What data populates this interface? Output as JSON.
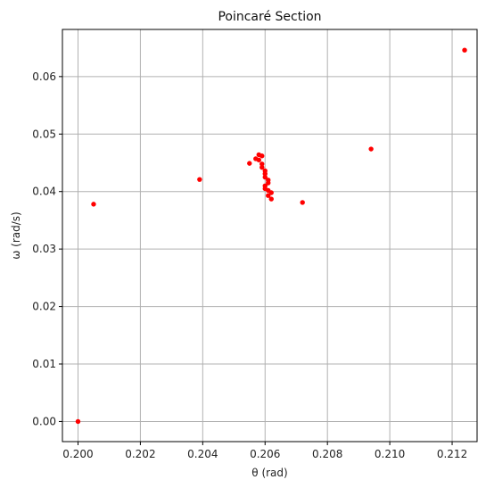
{
  "chart_data": {
    "type": "scatter",
    "title": "Poincaré Section",
    "xlabel": "θ (rad)",
    "ylabel": "ω (rad/s)",
    "xlim": [
      0.1995,
      0.2128
    ],
    "ylim": [
      -0.0035,
      0.0682
    ],
    "xticks": [
      0.2,
      0.202,
      0.204,
      0.206,
      0.208,
      0.21,
      0.212
    ],
    "xtick_labels": [
      "0.200",
      "0.202",
      "0.204",
      "0.206",
      "0.208",
      "0.210",
      "0.212"
    ],
    "yticks": [
      0.0,
      0.01,
      0.02,
      0.03,
      0.04,
      0.05,
      0.06
    ],
    "ytick_labels": [
      "0.00",
      "0.01",
      "0.02",
      "0.03",
      "0.04",
      "0.05",
      "0.06"
    ],
    "grid": true,
    "marker_color": "#ff0000",
    "points": [
      {
        "x": 0.2,
        "y": 0.0
      },
      {
        "x": 0.2005,
        "y": 0.0378
      },
      {
        "x": 0.2039,
        "y": 0.0421
      },
      {
        "x": 0.2055,
        "y": 0.0449
      },
      {
        "x": 0.2057,
        "y": 0.0457
      },
      {
        "x": 0.2058,
        "y": 0.0464
      },
      {
        "x": 0.2059,
        "y": 0.0462
      },
      {
        "x": 0.2058,
        "y": 0.0455
      },
      {
        "x": 0.2059,
        "y": 0.0448
      },
      {
        "x": 0.2059,
        "y": 0.0442
      },
      {
        "x": 0.206,
        "y": 0.0436
      },
      {
        "x": 0.206,
        "y": 0.0431
      },
      {
        "x": 0.206,
        "y": 0.0425
      },
      {
        "x": 0.2061,
        "y": 0.042
      },
      {
        "x": 0.2061,
        "y": 0.0415
      },
      {
        "x": 0.206,
        "y": 0.041
      },
      {
        "x": 0.206,
        "y": 0.0405
      },
      {
        "x": 0.2061,
        "y": 0.0402
      },
      {
        "x": 0.2062,
        "y": 0.0398
      },
      {
        "x": 0.2061,
        "y": 0.0393
      },
      {
        "x": 0.2062,
        "y": 0.0387
      },
      {
        "x": 0.2072,
        "y": 0.0381
      },
      {
        "x": 0.2094,
        "y": 0.0474
      },
      {
        "x": 0.2124,
        "y": 0.0646
      }
    ]
  }
}
